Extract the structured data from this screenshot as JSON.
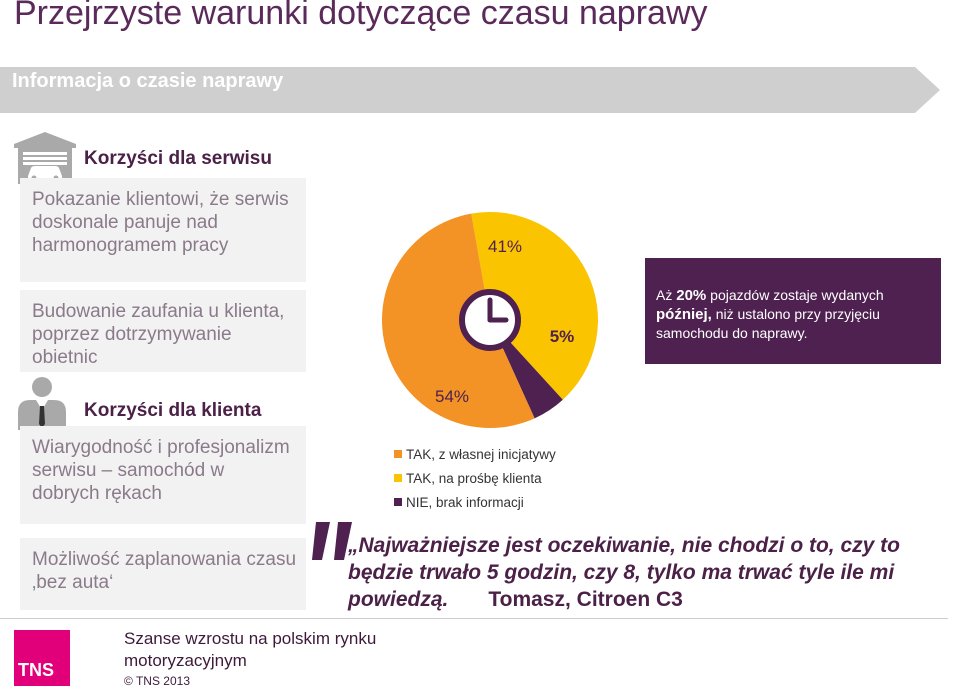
{
  "page_title": "Przejrzyste warunki dotyczące czasu naprawy",
  "banner_text": "Informacja o czasie naprawy",
  "service_section": {
    "title": "Korzyści dla serwisu",
    "items": [
      "Pokazanie klientowi, że serwis doskonale panuje nad harmonogramem pracy",
      "Budowanie zaufania u klienta, poprzez dotrzymywanie obietnic"
    ]
  },
  "client_section": {
    "title": "Korzyści dla klienta",
    "items": [
      "Wiarygodność i profesjonalizm serwisu – samochód w dobrych rękach",
      "Możliwość zaplanowania czasu ‚bez auta‘"
    ]
  },
  "callout": {
    "prefix": "Aż",
    "value": "20%",
    "middle": "pojazdów zostaje wydanych",
    "emphasis": "później,",
    "suffix": "niż ustalono przy przyjęciu samochodu do naprawy."
  },
  "chart_data": {
    "type": "pie",
    "categories": [
      "TAK, z własnej inicjatywy",
      "TAK, na prośbę klienta",
      "NIE, brak informacji"
    ],
    "values": [
      54,
      41,
      5
    ],
    "value_labels": [
      "54%",
      "41%",
      "5%"
    ],
    "colors": [
      "#f39325",
      "#fbc400",
      "#4e2150"
    ],
    "legend_position": "bottom"
  },
  "quote": {
    "open_mark": "„",
    "text": "Najważniejsze jest oczekiwanie, nie chodzi o to, czy to będzie trwało 5 godzin, czy 8, tylko ma trwać tyle ile mi powiedzą.",
    "author": "Tomasz, Citroen C3"
  },
  "footer": {
    "text": "Szanse wzrostu na polskim rynku motoryzacyjnym",
    "copyright": "© TNS 2013",
    "logo": "TNS"
  },
  "icons": [
    "garage-icon",
    "businessman-icon",
    "clock-icon",
    "quote-marks-icon"
  ],
  "colors": {
    "brand_purple": "#4e2150",
    "banner_gray": "#cfcfcf",
    "tns_pink": "#e2007a"
  }
}
